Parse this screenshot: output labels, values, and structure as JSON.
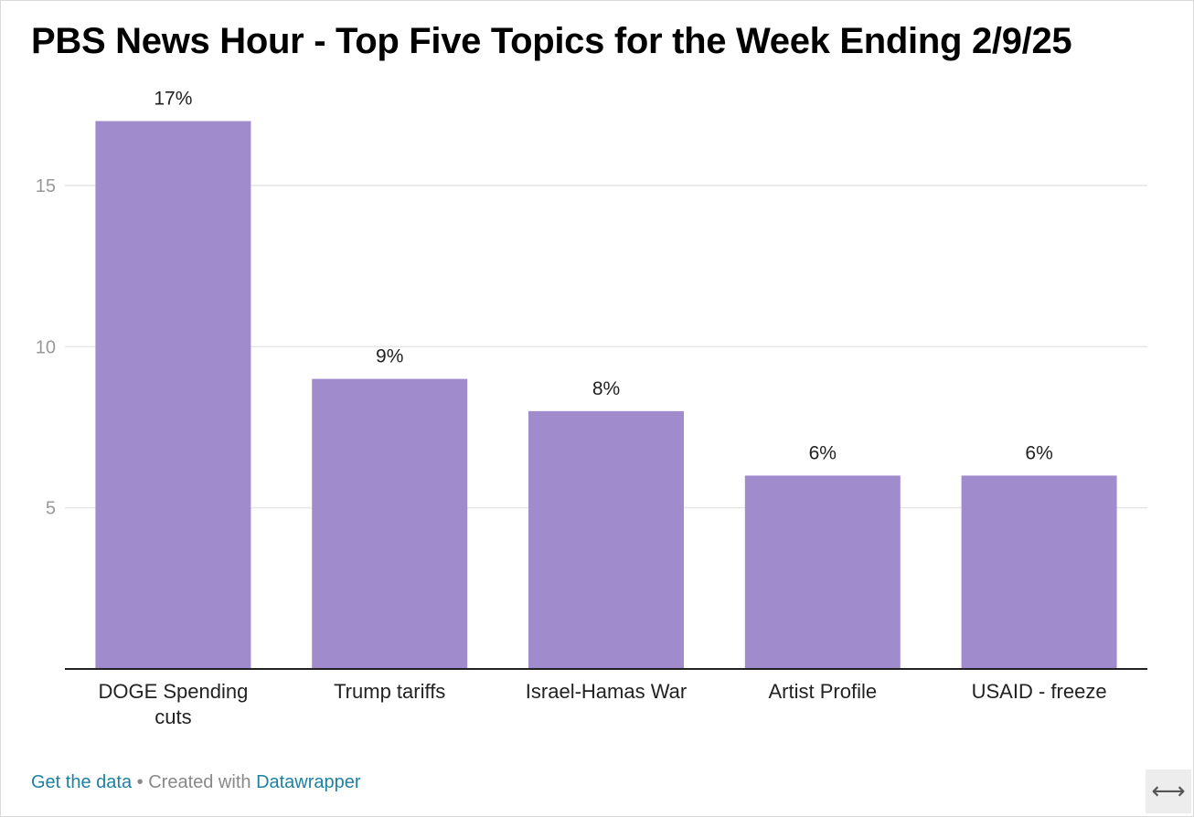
{
  "title": "PBS News Hour - Top Five Topics for the Week Ending 2/9/25",
  "chart_data": {
    "type": "bar",
    "categories": [
      "DOGE Spending cuts",
      "Trump tariffs",
      "Israel-Hamas War",
      "Artist Profile",
      "USAID - freeze"
    ],
    "category_lines": [
      [
        "DOGE Spending",
        "cuts"
      ],
      [
        "Trump tariffs"
      ],
      [
        "Israel-Hamas War"
      ],
      [
        "Artist Profile"
      ],
      [
        "USAID - freeze"
      ]
    ],
    "values": [
      17,
      9,
      8,
      6,
      6
    ],
    "value_labels": [
      "17%",
      "9%",
      "8%",
      "6%",
      "6%"
    ],
    "yticks": [
      5,
      10,
      15
    ],
    "ylim": [
      0,
      17
    ],
    "grid": true,
    "bar_color": "#a08ccc",
    "xlabel": "",
    "ylabel": ""
  },
  "footer": {
    "get_data": "Get the data",
    "separator": "•",
    "created_with": "Created with",
    "datawrapper": "Datawrapper"
  },
  "resize_icon": "resize-horizontal-icon",
  "resize_glyph": "⟷"
}
